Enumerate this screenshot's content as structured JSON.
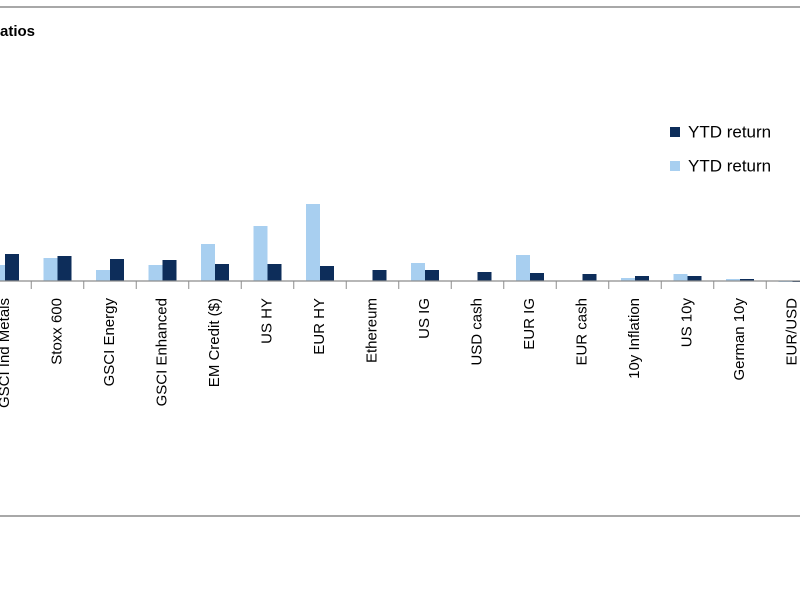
{
  "chart_data": {
    "type": "bar",
    "title": "atios",
    "categories": [
      "GSCI Ind Metals",
      "Stoxx 600",
      "GSCI Energy",
      "GSCI Enhanced",
      "EM Credit ($)",
      "US HY",
      "EUR HY",
      "Ethereum",
      "US IG",
      "USD cash",
      "EUR IG",
      "EUR cash",
      "10y Inflation",
      "US 10y",
      "German 10y",
      "EUR/USD"
    ],
    "series": [
      {
        "name": "YTD return",
        "color": "#0d2d5a",
        "values": [
          27,
          25,
          22,
          21,
          17,
          17,
          15,
          11,
          11,
          9,
          8,
          7,
          5,
          5,
          2,
          -1
        ]
      },
      {
        "name": "YTD return",
        "color": "#a8cff0",
        "values": [
          16,
          23,
          11,
          16,
          37,
          55,
          77,
          0,
          18,
          0,
          26,
          0,
          3,
          7,
          2,
          -1
        ]
      }
    ],
    "ylim": [
      -233,
      274
    ]
  }
}
